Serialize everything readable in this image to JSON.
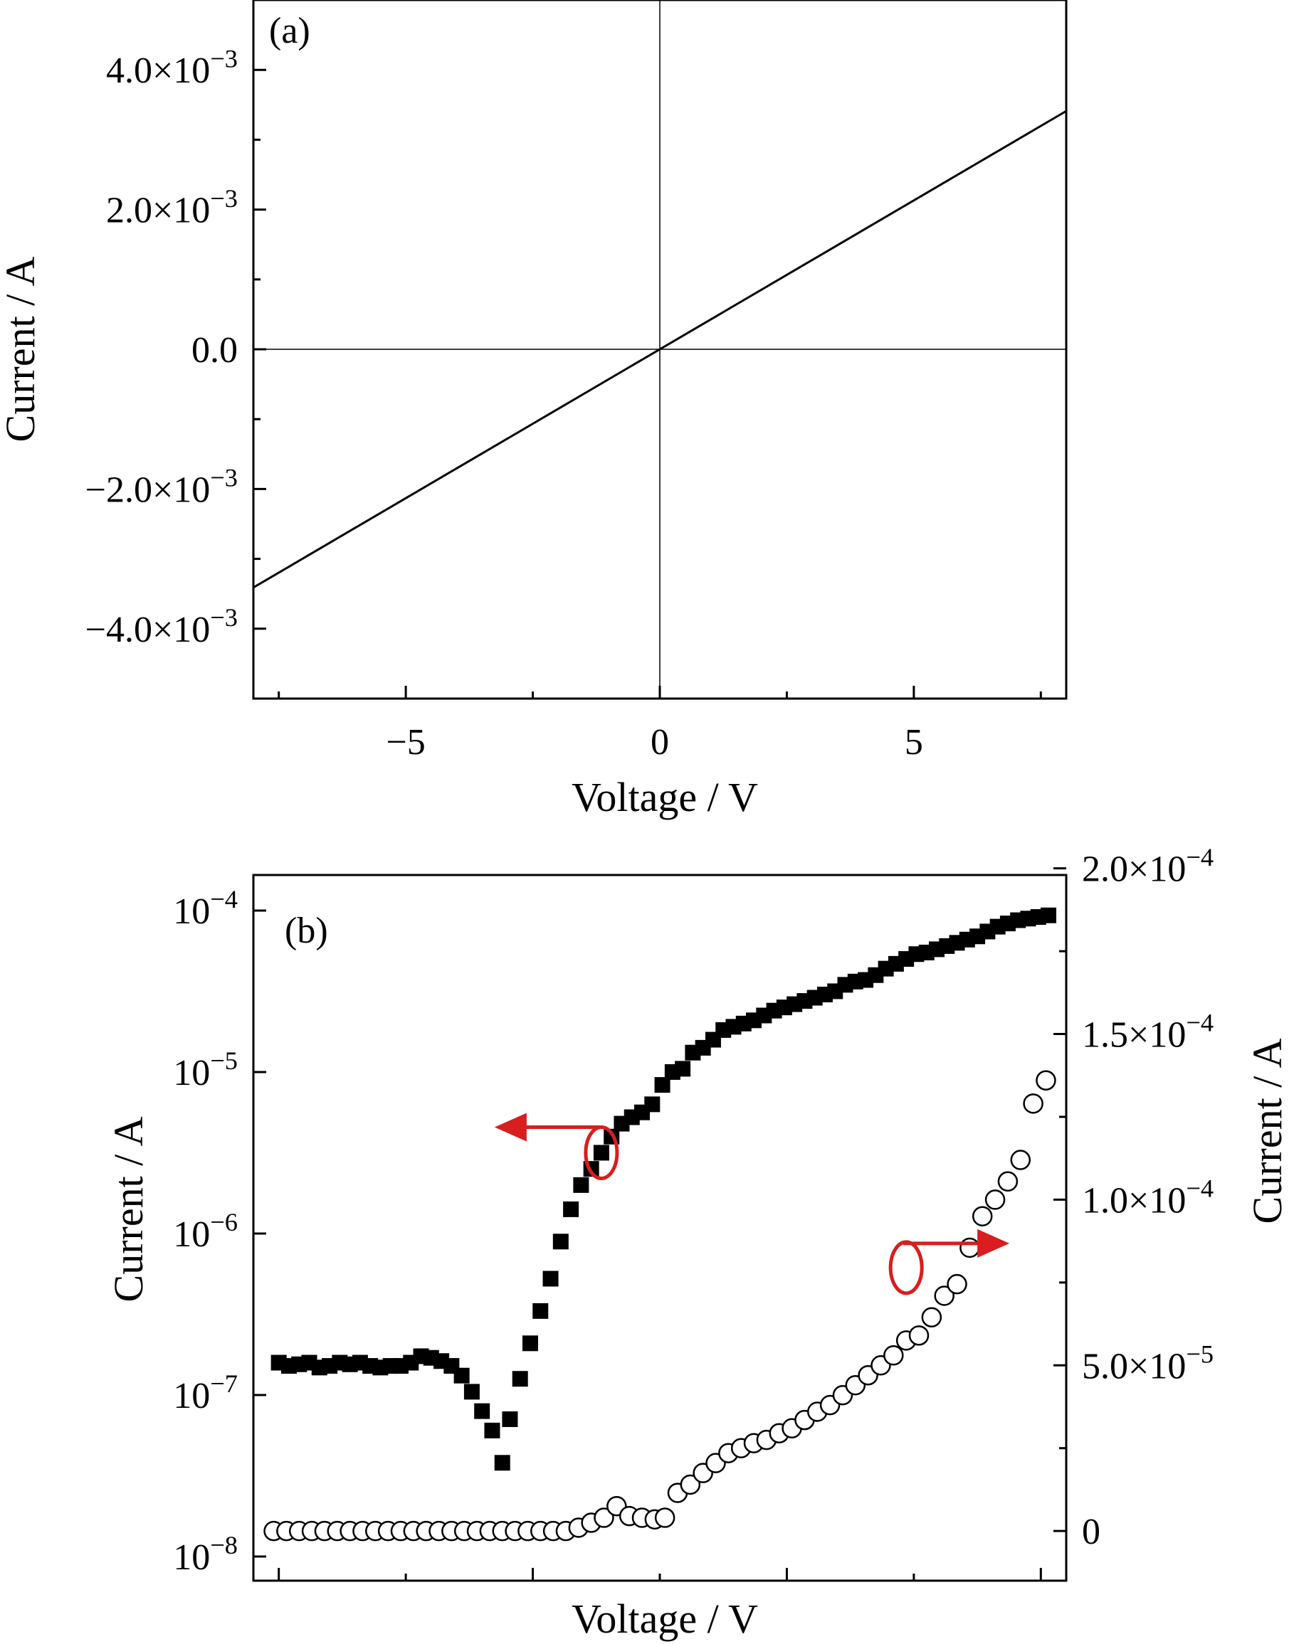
{
  "chart_data": [
    {
      "type": "line",
      "panel_label": "(a)",
      "xlabel": "Voltage / V",
      "ylabel": "Current / A",
      "xlim": [
        -8,
        8
      ],
      "ylim": [
        -0.005,
        0.005
      ],
      "x_ticks": [
        {
          "value": -5,
          "label": "−5"
        },
        {
          "value": 0,
          "label": "0"
        },
        {
          "value": 5,
          "label": "5"
        }
      ],
      "y_ticks": [
        {
          "value": 0.004,
          "mantissa": "4.0×10",
          "exp": "−3"
        },
        {
          "value": 0.002,
          "mantissa": "2.0×10",
          "exp": "−3"
        },
        {
          "value": 0,
          "mantissa": "0.0",
          "exp": ""
        },
        {
          "value": -0.002,
          "mantissa": "−2.0×10",
          "exp": "−3"
        },
        {
          "value": -0.004,
          "mantissa": "−4.0×10",
          "exp": "−3"
        }
      ],
      "x_minor_ticks": [
        -7.5,
        -2.5,
        2.5,
        7.5
      ],
      "y_minor_ticks": [
        0.003,
        0.001,
        -0.001,
        -0.003
      ],
      "zero_lines": true,
      "series": [
        {
          "x": [
            -8,
            8
          ],
          "y": [
            -0.00341,
            0.00341
          ]
        }
      ]
    },
    {
      "type": "scatter",
      "panel_label": "(b)",
      "xlabel": "Voltage / V",
      "ylabel": "Current / A",
      "y2label": "Current / A",
      "xlim": [
        -8,
        8
      ],
      "ylim_log": [
        -8.15,
        -3.78
      ],
      "y2lim": [
        -1.5e-05,
        0.000198
      ],
      "y_scale": "log",
      "x_major_ticks": [
        -7.5,
        -2.5,
        2.5,
        7.5
      ],
      "x_minor_ticks": [
        -5,
        0,
        5
      ],
      "y_ticks_log": [
        {
          "value": -4,
          "base": "10",
          "exp": "−4"
        },
        {
          "value": -5,
          "base": "10",
          "exp": "−5"
        },
        {
          "value": -6,
          "base": "10",
          "exp": "−6"
        },
        {
          "value": -7,
          "base": "10",
          "exp": "−7"
        },
        {
          "value": -8,
          "base": "10",
          "exp": "−8"
        }
      ],
      "y2_ticks": [
        {
          "value": 0.0002,
          "mantissa": "2.0×10",
          "exp": "−4"
        },
        {
          "value": 0.00015,
          "mantissa": "1.5×10",
          "exp": "−4"
        },
        {
          "value": 0.0001,
          "mantissa": "1.0×10",
          "exp": "−4"
        },
        {
          "value": 5e-05,
          "mantissa": "5.0×10",
          "exp": "−5"
        },
        {
          "value": 0,
          "mantissa": "0",
          "exp": ""
        }
      ],
      "series": [
        {
          "marker": "filled-square",
          "axis": "left-log",
          "x": [
            -7.5,
            -7.3,
            -7.1,
            -6.9,
            -6.7,
            -6.5,
            -6.3,
            -6.1,
            -5.9,
            -5.7,
            -5.5,
            -5.3,
            -5.1,
            -4.9,
            -4.7,
            -4.5,
            -4.3,
            -4.1,
            -3.9,
            -3.7,
            -3.5,
            -3.3,
            -3.1,
            -2.95,
            -2.75,
            -2.55,
            -2.35,
            -2.15,
            -1.95,
            -1.75,
            -1.55,
            -1.35,
            -1.15,
            -0.95,
            -0.75,
            -0.55,
            -0.35,
            -0.15,
            0.05,
            0.25,
            0.45,
            0.65,
            0.85,
            1.05,
            1.25,
            1.45,
            1.65,
            1.85,
            2.05,
            2.25,
            2.45,
            2.65,
            2.85,
            3.05,
            3.25,
            3.45,
            3.65,
            3.85,
            4.05,
            4.25,
            4.45,
            4.65,
            4.85,
            5.05,
            5.25,
            5.45,
            5.65,
            5.85,
            6.05,
            6.25,
            6.45,
            6.65,
            6.85,
            7.05,
            7.25,
            7.45,
            7.65
          ],
          "y": [
            -6.8,
            -6.82,
            -6.81,
            -6.8,
            -6.83,
            -6.82,
            -6.8,
            -6.81,
            -6.8,
            -6.82,
            -6.83,
            -6.82,
            -6.82,
            -6.8,
            -6.76,
            -6.77,
            -6.79,
            -6.82,
            -6.88,
            -6.98,
            -7.1,
            -7.22,
            -7.42,
            -7.15,
            -6.9,
            -6.68,
            -6.48,
            -6.28,
            -6.05,
            -5.85,
            -5.7,
            -5.6,
            -5.5,
            -5.4,
            -5.32,
            -5.28,
            -5.25,
            -5.2,
            -5.08,
            -5.0,
            -4.98,
            -4.88,
            -4.85,
            -4.8,
            -4.74,
            -4.72,
            -4.7,
            -4.68,
            -4.65,
            -4.62,
            -4.6,
            -4.58,
            -4.56,
            -4.54,
            -4.52,
            -4.5,
            -4.46,
            -4.44,
            -4.43,
            -4.4,
            -4.36,
            -4.33,
            -4.3,
            -4.27,
            -4.26,
            -4.24,
            -4.22,
            -4.2,
            -4.18,
            -4.16,
            -4.13,
            -4.1,
            -4.08,
            -4.06,
            -4.05,
            -4.04,
            -4.03
          ]
        },
        {
          "marker": "open-circle",
          "axis": "right-linear",
          "x": [
            -7.6,
            -7.35,
            -7.1,
            -6.85,
            -6.6,
            -6.35,
            -6.1,
            -5.85,
            -5.6,
            -5.35,
            -5.1,
            -4.85,
            -4.6,
            -4.35,
            -4.1,
            -3.85,
            -3.6,
            -3.35,
            -3.1,
            -2.85,
            -2.6,
            -2.35,
            -2.1,
            -1.85,
            -1.6,
            -1.35,
            -1.1,
            -0.85,
            -0.6,
            -0.35,
            -0.1,
            0.1,
            0.35,
            0.6,
            0.85,
            1.1,
            1.35,
            1.6,
            1.85,
            2.1,
            2.35,
            2.6,
            2.85,
            3.1,
            3.35,
            3.6,
            3.85,
            4.1,
            4.35,
            4.6,
            4.85,
            5.1,
            5.35,
            5.6,
            5.85,
            6.1,
            6.35,
            6.6,
            6.85,
            7.1,
            7.35,
            7.6
          ],
          "y": [
            0,
            0,
            0,
            0,
            0,
            0,
            0,
            0,
            0,
            0,
            0,
            0,
            0,
            0,
            0,
            0,
            0,
            0,
            0,
            0,
            0,
            0,
            0,
            0,
            1e-06,
            2.5e-06,
            4e-06,
            7.5e-06,
            4.5e-06,
            4e-06,
            3.5e-06,
            4e-06,
            1.15e-05,
            1.4e-05,
            1.75e-05,
            2.05e-05,
            2.35e-05,
            2.5e-05,
            2.65e-05,
            2.75e-05,
            2.95e-05,
            3.1e-05,
            3.35e-05,
            3.6e-05,
            3.8e-05,
            4.1e-05,
            4.4e-05,
            4.7e-05,
            5e-05,
            5.3e-05,
            5.75e-05,
            5.9e-05,
            6.45e-05,
            7.1e-05,
            7.45e-05,
            8.55e-05,
            9.5e-05,
            0.0001,
            0.0001055,
            0.000112,
            0.000129,
            0.000136
          ]
        }
      ],
      "annotations": [
        {
          "type": "ellipse-arrow",
          "color": "#d81e1e",
          "points_to": "left-axis"
        },
        {
          "type": "ellipse-arrow",
          "color": "#d81e1e",
          "points_to": "right-axis"
        }
      ]
    }
  ]
}
